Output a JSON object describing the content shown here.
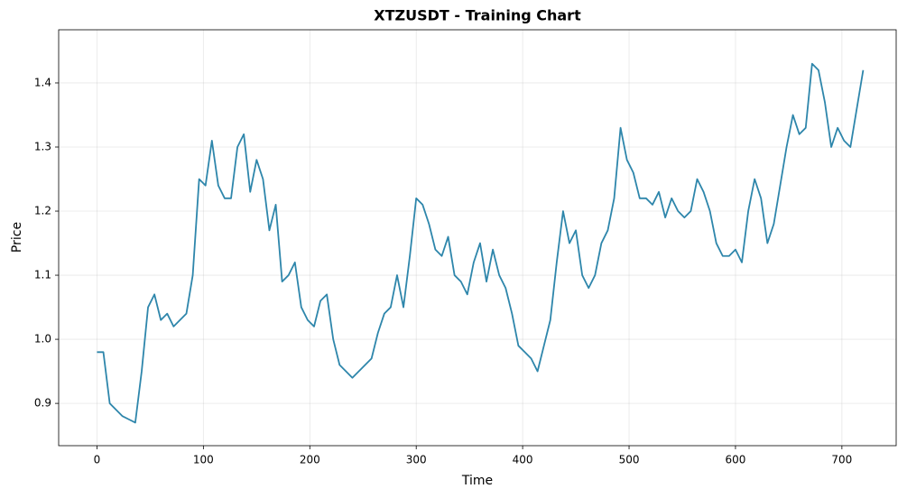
{
  "chart_data": {
    "type": "line",
    "title": "XTZUSDT - Training Chart",
    "x_label": "Time",
    "y_label": "Price",
    "x": [
      0,
      6,
      12,
      18,
      24,
      30,
      36,
      42,
      48,
      54,
      60,
      66,
      72,
      78,
      84,
      90,
      96,
      102,
      108,
      114,
      120,
      126,
      132,
      138,
      144,
      150,
      156,
      162,
      168,
      174,
      180,
      186,
      192,
      198,
      204,
      210,
      216,
      222,
      228,
      234,
      240,
      246,
      252,
      258,
      264,
      270,
      276,
      282,
      288,
      294,
      300,
      306,
      312,
      318,
      324,
      330,
      336,
      342,
      348,
      354,
      360,
      366,
      372,
      378,
      384,
      390,
      396,
      402,
      408,
      414,
      420,
      426,
      432,
      438,
      444,
      450,
      456,
      462,
      468,
      474,
      480,
      486,
      492,
      498,
      504,
      510,
      516,
      522,
      528,
      534,
      540,
      546,
      552,
      558,
      564,
      570,
      576,
      582,
      588,
      594,
      600,
      606,
      612,
      618,
      624,
      630,
      636,
      642,
      648,
      654,
      660,
      666,
      672,
      678,
      684,
      690,
      696,
      702,
      708,
      714,
      720
    ],
    "series": [
      {
        "name": "XTZUSDT",
        "color": "#2e86ab",
        "values": [
          0.98,
          0.98,
          0.9,
          0.89,
          0.88,
          0.875,
          0.87,
          0.95,
          1.05,
          1.07,
          1.03,
          1.04,
          1.02,
          1.03,
          1.04,
          1.1,
          1.25,
          1.24,
          1.31,
          1.24,
          1.22,
          1.22,
          1.3,
          1.32,
          1.23,
          1.28,
          1.25,
          1.17,
          1.21,
          1.09,
          1.1,
          1.12,
          1.05,
          1.03,
          1.02,
          1.06,
          1.07,
          1.0,
          0.96,
          0.95,
          0.94,
          0.95,
          0.96,
          0.97,
          1.01,
          1.04,
          1.05,
          1.1,
          1.05,
          1.13,
          1.22,
          1.21,
          1.18,
          1.14,
          1.13,
          1.16,
          1.1,
          1.09,
          1.07,
          1.12,
          1.15,
          1.09,
          1.14,
          1.1,
          1.08,
          1.04,
          0.99,
          0.98,
          0.97,
          0.95,
          0.99,
          1.03,
          1.12,
          1.2,
          1.15,
          1.17,
          1.1,
          1.08,
          1.1,
          1.15,
          1.17,
          1.22,
          1.33,
          1.28,
          1.26,
          1.22,
          1.22,
          1.21,
          1.23,
          1.19,
          1.22,
          1.2,
          1.19,
          1.2,
          1.25,
          1.23,
          1.2,
          1.15,
          1.13,
          1.13,
          1.14,
          1.12,
          1.2,
          1.25,
          1.22,
          1.15,
          1.18,
          1.24,
          1.3,
          1.35,
          1.32,
          1.33,
          1.43,
          1.42,
          1.37,
          1.3,
          1.33,
          1.31,
          1.3,
          1.36,
          1.42
        ]
      }
    ],
    "xlim": [
      -36,
      751
    ],
    "ylim": [
      0.834,
      1.483
    ],
    "xticks": [
      0,
      100,
      200,
      300,
      400,
      500,
      600,
      700
    ],
    "yticks": [
      0.9,
      {
        "value": 1,
        "label": "1.0"
      },
      1.1,
      1.2,
      1.3,
      1.4
    ],
    "grid": true
  }
}
